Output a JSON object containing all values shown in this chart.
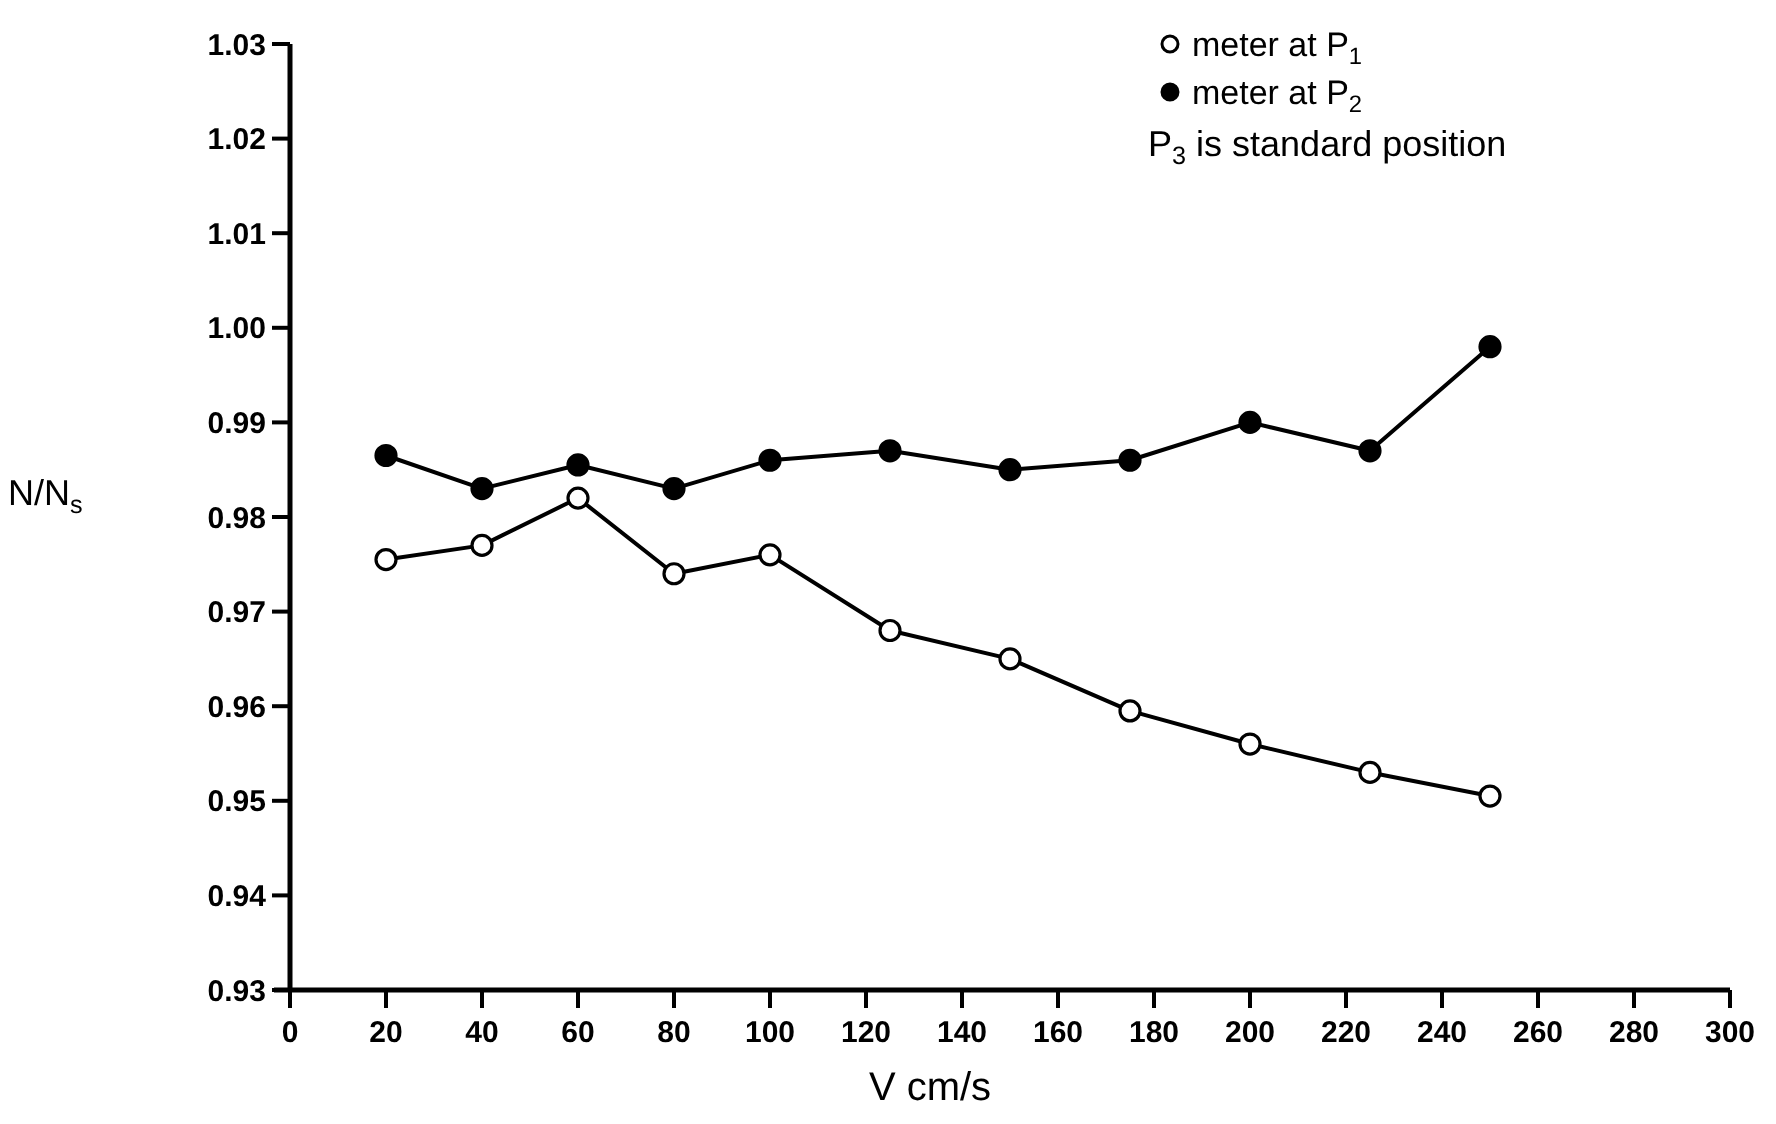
{
  "chart_data": {
    "type": "line",
    "xlabel": "V cm/s",
    "ylabel": "N/N$_{s}$",
    "annotations": [
      "P$_{3}$ is standard position"
    ],
    "x": [
      20,
      40,
      60,
      80,
      100,
      125,
      150,
      175,
      200,
      225,
      250
    ],
    "series": [
      {
        "name": "meter at P$_{1}$",
        "color": "#000000",
        "values": [
          0.9755,
          0.977,
          0.982,
          0.974,
          0.976,
          0.968,
          0.965,
          0.9595,
          0.956,
          0.953,
          0.9505
        ]
      },
      {
        "name": "meter at P$_{2}$",
        "color": "#000000",
        "values": [
          0.9865,
          0.983,
          0.9855,
          0.983,
          0.986,
          0.987,
          0.985,
          0.986,
          0.99,
          0.987,
          0.998
        ]
      }
    ],
    "xlim": [
      0,
      300
    ],
    "xticks": [
      0,
      20,
      40,
      60,
      80,
      100,
      120,
      140,
      160,
      180,
      200,
      220,
      240,
      260,
      280,
      300
    ],
    "ylim": [
      0.93,
      1.03
    ],
    "yticks": [
      0.93,
      0.94,
      0.95,
      0.96,
      0.97,
      0.98,
      0.99,
      {
        "value": 1,
        "label": "1.00"
      },
      1.01,
      1.02,
      1.03
    ],
    "legend": "top right",
    "marker": "circle",
    "grid": false
  }
}
